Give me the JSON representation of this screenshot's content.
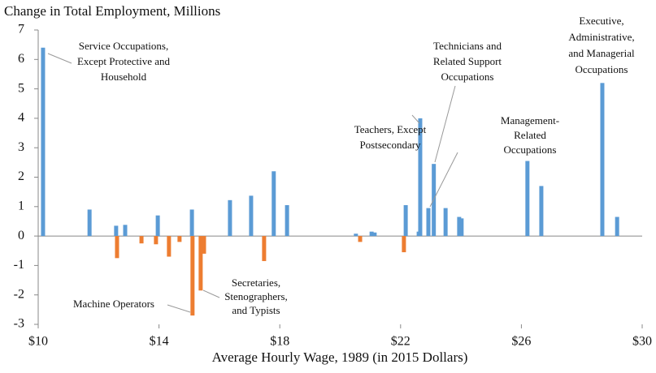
{
  "chart_data": {
    "type": "bar",
    "y_axis_label": "Change in Total Employment, Millions",
    "x_axis_label": "Average Hourly Wage, 1989 (in 2015 Dollars)",
    "xlim": [
      10,
      30
    ],
    "xticks": [
      {
        "value": 10,
        "label": "$10"
      },
      {
        "value": 14,
        "label": "$14"
      },
      {
        "value": 18,
        "label": "$18"
      },
      {
        "value": 22,
        "label": "$22"
      },
      {
        "value": 26,
        "label": "$26"
      },
      {
        "value": 30,
        "label": "$30"
      }
    ],
    "ylim": [
      -3,
      7
    ],
    "yticks": [
      7,
      6,
      5,
      4,
      3,
      2,
      1,
      0,
      -1,
      -2,
      -3
    ],
    "series": [
      {
        "color": "#5b9bd5",
        "x": [
          10.16,
          11.7,
          12.58,
          12.88,
          13.96,
          15.09,
          16.35,
          17.05,
          17.8,
          18.24,
          20.52,
          21.04,
          21.14,
          22.17,
          22.6,
          22.65,
          22.92,
          23.1,
          23.49,
          23.94,
          24.02,
          26.2,
          26.66,
          28.68,
          29.17
        ],
        "values": [
          6.4,
          0.9,
          0.35,
          0.38,
          0.7,
          0.9,
          1.22,
          1.37,
          2.2,
          1.05,
          0.08,
          0.15,
          0.12,
          1.05,
          0.15,
          4.0,
          0.95,
          2.45,
          0.95,
          0.65,
          0.6,
          2.55,
          1.7,
          5.2,
          0.65
        ]
      },
      {
        "color": "#ed7d31",
        "x": [
          12.61,
          13.42,
          13.9,
          14.33,
          14.68,
          15.11,
          15.38,
          15.49,
          17.48,
          20.66,
          22.11
        ],
        "values": [
          -0.75,
          -0.25,
          -0.28,
          -0.7,
          -0.2,
          -2.7,
          -1.85,
          -0.6,
          -0.85,
          -0.2,
          -0.55
        ]
      }
    ],
    "annotations": [
      {
        "lines": [
          "Service Occupations,",
          "Except Protective and",
          "Household"
        ]
      },
      {
        "lines": [
          "Machine Operators"
        ]
      },
      {
        "lines": [
          "Secretaries,",
          "Stenographers,",
          "and Typists"
        ]
      },
      {
        "lines": [
          "Teachers, Except",
          "Postsecondary"
        ]
      },
      {
        "lines": [
          "Technicians and",
          "Related Support",
          "Occupations"
        ]
      },
      {
        "lines": [
          "Management-",
          "Related",
          "Occupations"
        ]
      },
      {
        "lines": [
          "Executive,",
          "Administrative,",
          "and Managerial",
          "Occupations"
        ]
      }
    ]
  }
}
